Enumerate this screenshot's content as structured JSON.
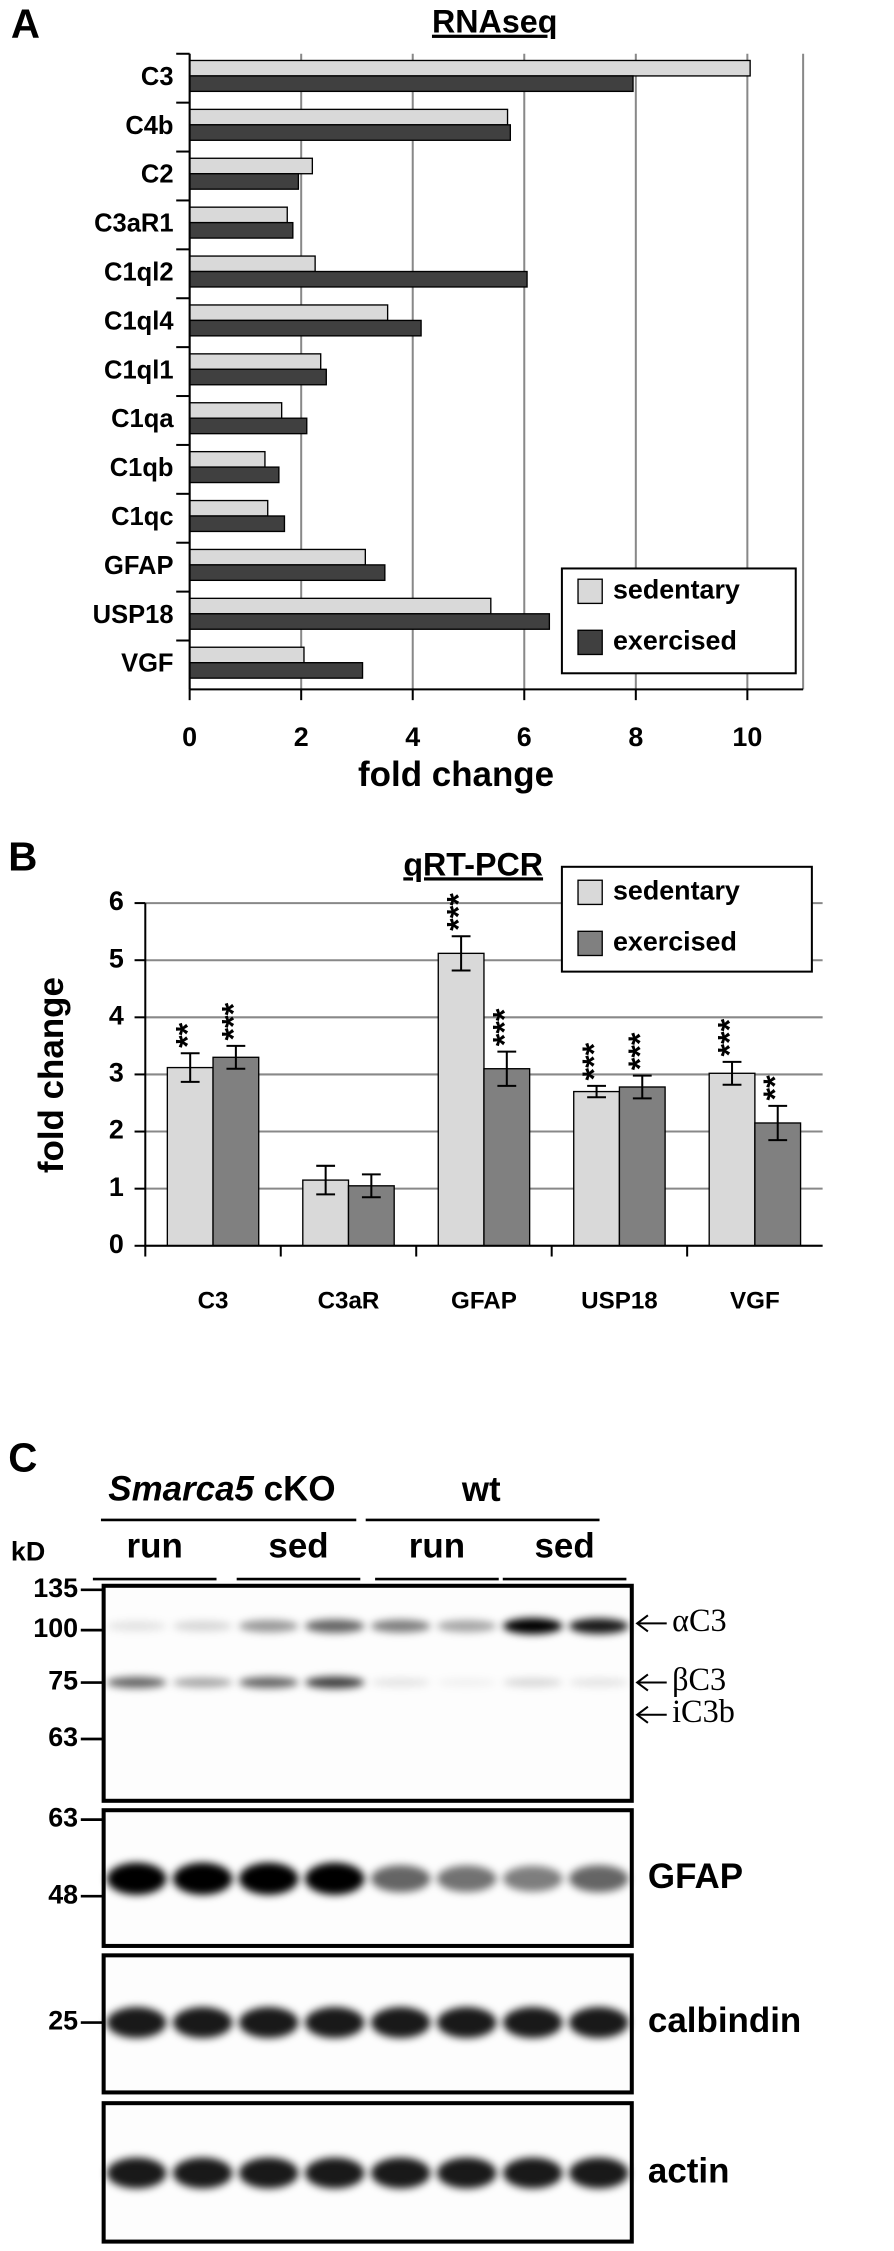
{
  "chart_data": [
    {
      "type": "hbar",
      "panel": "A",
      "title": "RNAseq",
      "x_label": "fold change",
      "categories": [
        "C3",
        "C4b",
        "C2",
        "C3aR1",
        "C1ql2",
        "C1ql4",
        "C1ql1",
        "C1qa",
        "C1qb",
        "C1qc",
        "GFAP",
        "USP18",
        "VGF"
      ],
      "series": [
        {
          "name": "sedentary",
          "color": "#d9d9d9",
          "values": [
            10.05,
            5.7,
            2.2,
            1.75,
            2.25,
            3.55,
            2.35,
            1.65,
            1.35,
            1.4,
            3.15,
            5.4,
            2.05
          ]
        },
        {
          "name": "exercised",
          "color": "#404040",
          "values": [
            7.95,
            5.75,
            1.95,
            1.85,
            6.05,
            4.15,
            2.45,
            2.1,
            1.6,
            1.7,
            3.5,
            6.45,
            3.1
          ]
        }
      ],
      "xlim": [
        0,
        11
      ],
      "xticks": [
        0,
        2,
        4,
        6,
        8,
        10
      ],
      "grid": true,
      "legend": "lower right"
    },
    {
      "type": "bar",
      "panel": "B",
      "title": "qRT-PCR",
      "y_label": "fold change",
      "categories": [
        "C3",
        "C3aR",
        "GFAP",
        "USP18",
        "VGF"
      ],
      "series": [
        {
          "name": "sedentary",
          "color": "#d9d9d9",
          "values": [
            3.12,
            1.15,
            5.12,
            2.7,
            3.02
          ],
          "errors": [
            0.25,
            0.25,
            0.3,
            0.1,
            0.2
          ],
          "annotations": [
            "**",
            null,
            "***",
            "***",
            "***"
          ]
        },
        {
          "name": "exercised",
          "color": "#808080",
          "values": [
            3.3,
            1.05,
            3.1,
            2.78,
            2.15
          ],
          "errors": [
            0.2,
            0.2,
            0.3,
            0.2,
            0.3
          ],
          "annotations": [
            "***",
            null,
            "***",
            "***",
            "**"
          ]
        }
      ],
      "ylim": [
        0,
        6
      ],
      "yticks": [
        0,
        1,
        2,
        3,
        4,
        5,
        6
      ],
      "grid": true,
      "legend": "upper right"
    }
  ],
  "blot": {
    "panel": "C",
    "unit": "kD",
    "genotypes": [
      {
        "gene": "Smarca5",
        "label": "cKO"
      },
      {
        "label": "wt"
      }
    ],
    "conditions": [
      "run",
      "sed",
      "run",
      "sed"
    ],
    "panels": [
      {
        "markers": [
          135,
          100,
          75,
          63
        ],
        "bands": [
          "αC3",
          "βC3",
          "iC3b"
        ]
      },
      {
        "markers": [
          63,
          48
        ],
        "label": "GFAP"
      },
      {
        "markers": [
          25
        ],
        "label": "calbindin"
      },
      {
        "label": "actin"
      }
    ]
  }
}
